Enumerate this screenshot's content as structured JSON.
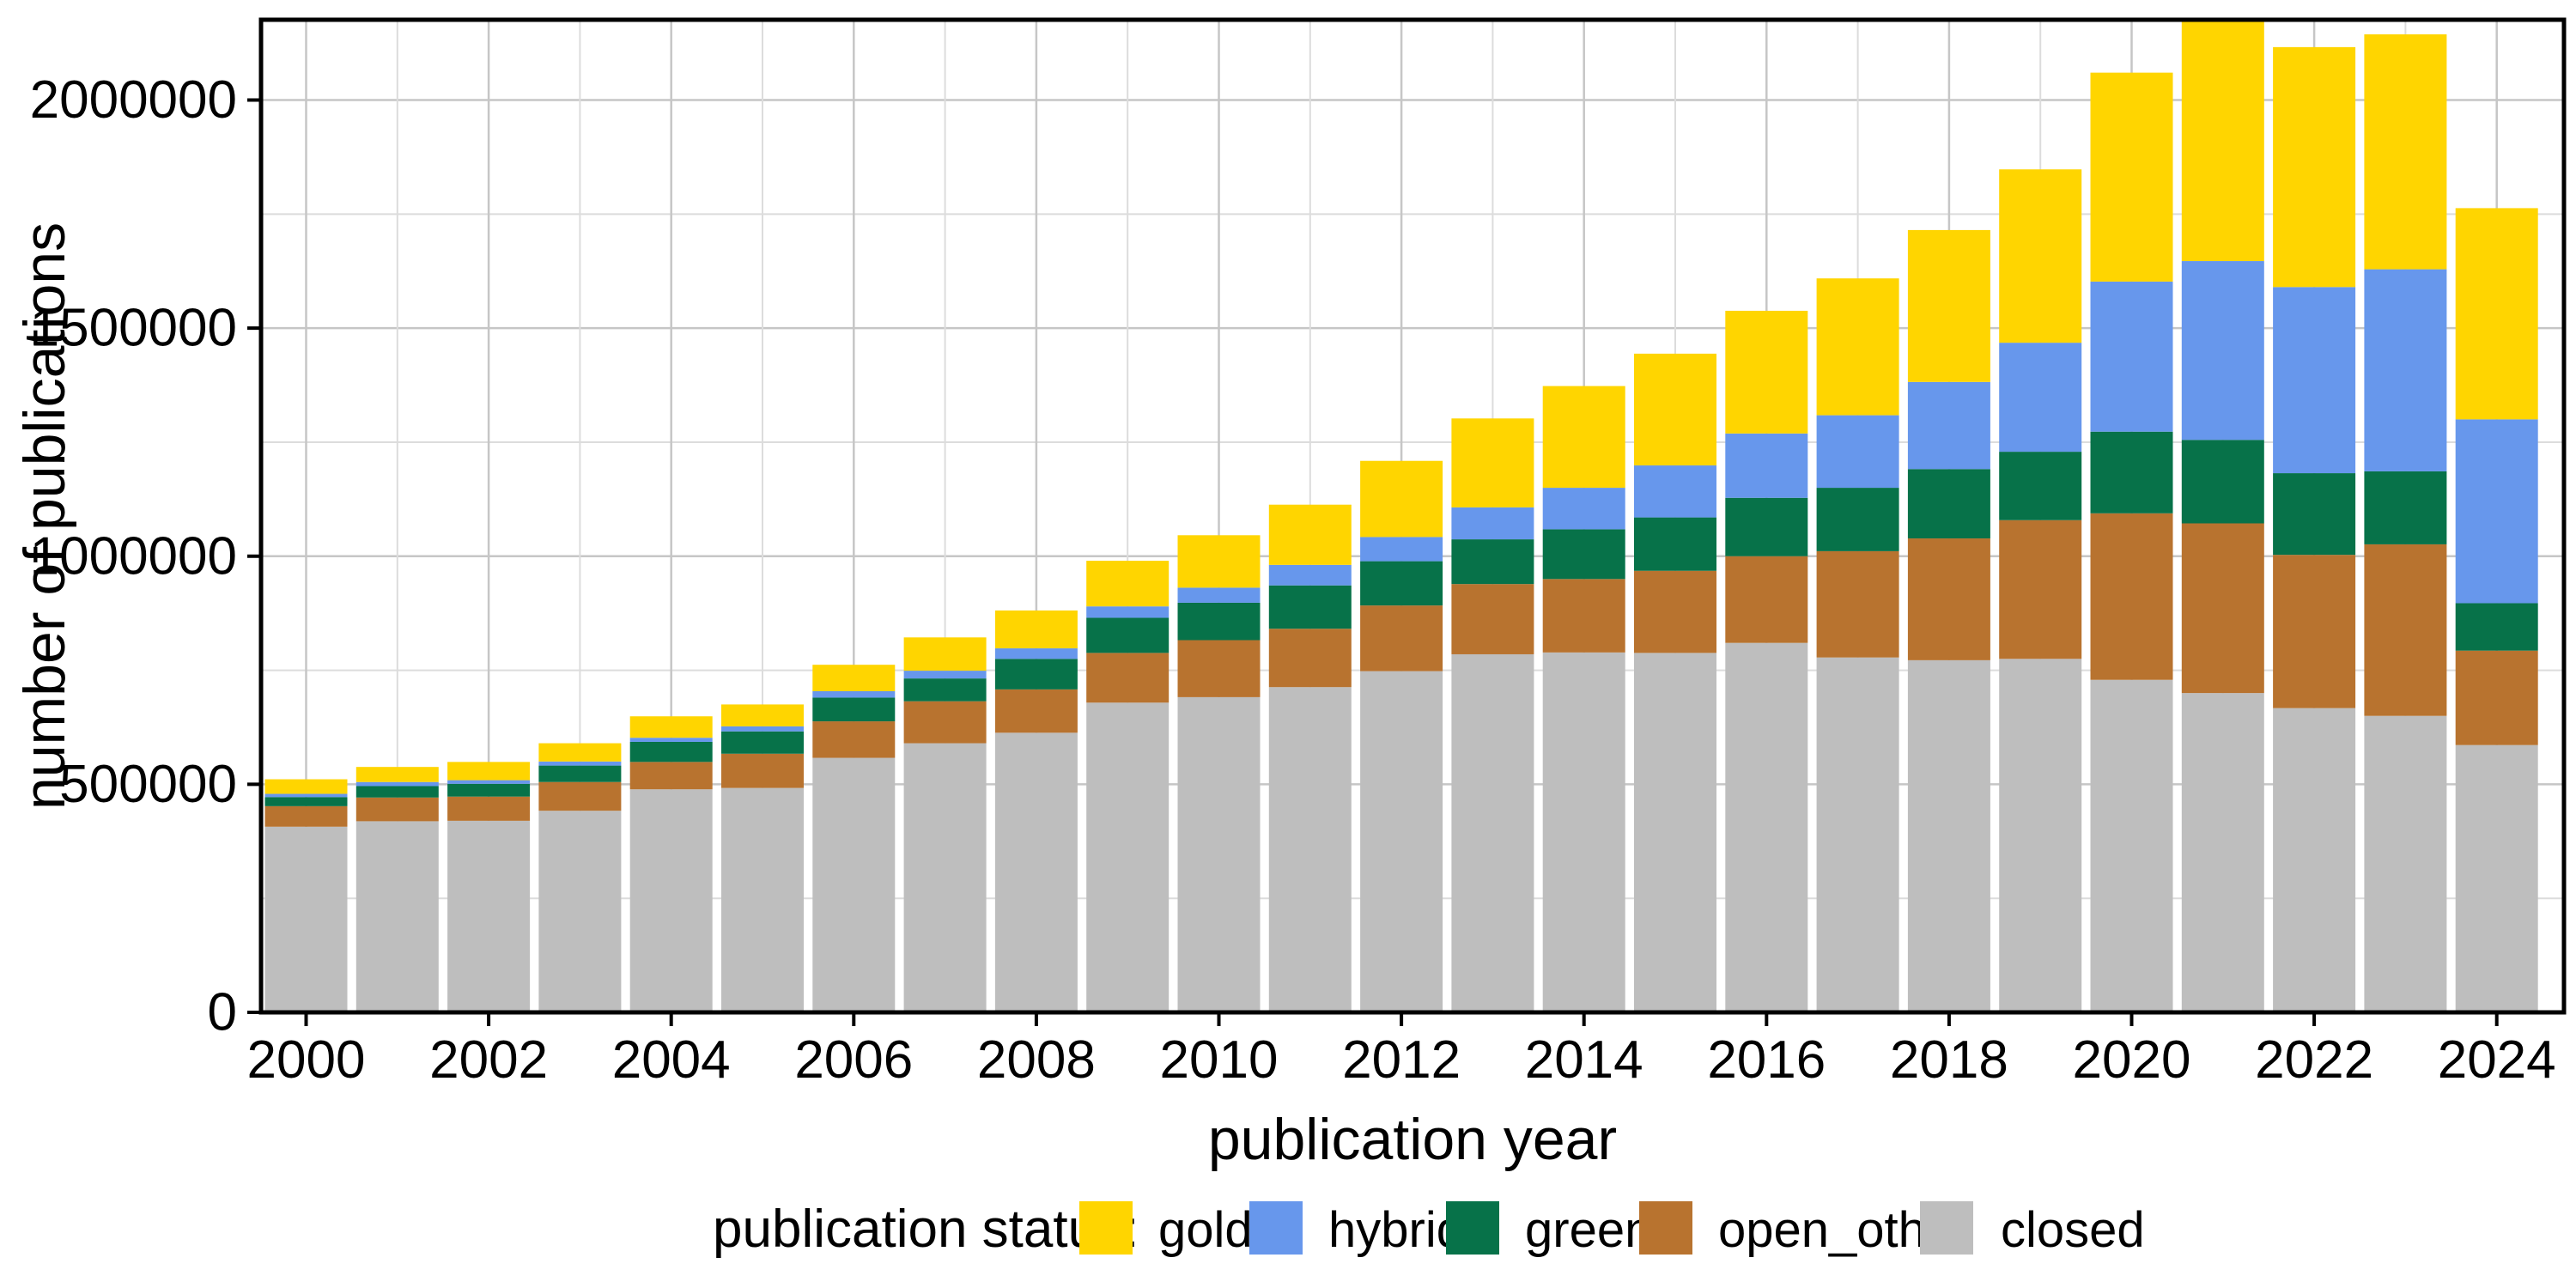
{
  "figure": {
    "y_axis": {
      "title": "number of publications",
      "tick_labels": [
        "0",
        "500000",
        "1000000",
        "1500000",
        "2000000"
      ],
      "tick_values": [
        0,
        500000,
        1000000,
        1500000,
        2000000
      ],
      "minor_tick_values": [
        250000,
        750000,
        1250000,
        1750000
      ]
    },
    "x_axis": {
      "title": "publication year",
      "tick_labels": [
        "2000",
        "2002",
        "2004",
        "2006",
        "2008",
        "2010",
        "2012",
        "2014",
        "2016",
        "2018",
        "2020",
        "2022",
        "2024"
      ],
      "tick_values": [
        2000,
        2002,
        2004,
        2006,
        2008,
        2010,
        2012,
        2014,
        2016,
        2018,
        2020,
        2022,
        2024
      ]
    }
  },
  "legend": {
    "title": "publication status:",
    "items": [
      {
        "label": "gold",
        "color": "#FFD500"
      },
      {
        "label": "hybrid",
        "color": "#6797EC"
      },
      {
        "label": "green",
        "color": "#077249"
      },
      {
        "label": "open_other",
        "color": "#B8732F"
      },
      {
        "label": "closed",
        "color": "#BEBEBE"
      }
    ]
  },
  "chart_data": {
    "type": "bar",
    "stacked": true,
    "title": "",
    "xlabel": "publication year",
    "ylabel": "number of publications",
    "x": [
      2000,
      2001,
      2002,
      2003,
      2004,
      2005,
      2006,
      2007,
      2008,
      2009,
      2010,
      2011,
      2012,
      2013,
      2014,
      2015,
      2016,
      2017,
      2018,
      2019,
      2020,
      2021,
      2022,
      2023,
      2024
    ],
    "stack_order_bottom_to_top": [
      "closed",
      "open_other",
      "green",
      "hybrid",
      "gold"
    ],
    "series": [
      {
        "name": "gold",
        "color": "#FFD500",
        "values": [
          32000,
          33000,
          40000,
          40000,
          47000,
          48000,
          58000,
          73000,
          83000,
          100000,
          115000,
          132000,
          167000,
          195000,
          223000,
          245000,
          269000,
          300000,
          333000,
          380000,
          458000,
          529000,
          526000,
          515000,
          463000
        ]
      },
      {
        "name": "hybrid",
        "color": "#6797EC",
        "values": [
          7000,
          9000,
          8000,
          9000,
          9000,
          11000,
          14000,
          17000,
          23000,
          25000,
          33000,
          45000,
          53000,
          70000,
          91000,
          114000,
          141000,
          159000,
          191000,
          239000,
          329000,
          392000,
          408000,
          443000,
          403000
        ]
      },
      {
        "name": "green",
        "color": "#077249",
        "values": [
          20000,
          25000,
          28000,
          36000,
          44000,
          49000,
          52000,
          50000,
          67000,
          77000,
          82000,
          95000,
          97000,
          98000,
          109000,
          117000,
          128000,
          139000,
          152000,
          150000,
          179000,
          183000,
          179000,
          160000,
          104000
        ]
      },
      {
        "name": "open_other",
        "color": "#B8732F",
        "values": [
          45000,
          52000,
          53000,
          63000,
          60000,
          75000,
          80000,
          92000,
          95000,
          109000,
          125000,
          128000,
          144000,
          154000,
          161000,
          180000,
          190000,
          233000,
          267000,
          304000,
          365000,
          372000,
          336000,
          376000,
          207000
        ]
      },
      {
        "name": "closed",
        "color": "#BEBEBE",
        "values": [
          407000,
          419000,
          420000,
          442000,
          489000,
          492000,
          558000,
          590000,
          613000,
          679000,
          691000,
          713000,
          748000,
          785000,
          789000,
          788000,
          810000,
          778000,
          772000,
          775000,
          729000,
          700000,
          667000,
          650000,
          586000
        ]
      }
    ],
    "ylim": [
      0,
      2176000
    ],
    "grid": {
      "major_color": "#C6C6C6",
      "minor_color": "#DCDCDC"
    },
    "legend_position": "bottom"
  }
}
